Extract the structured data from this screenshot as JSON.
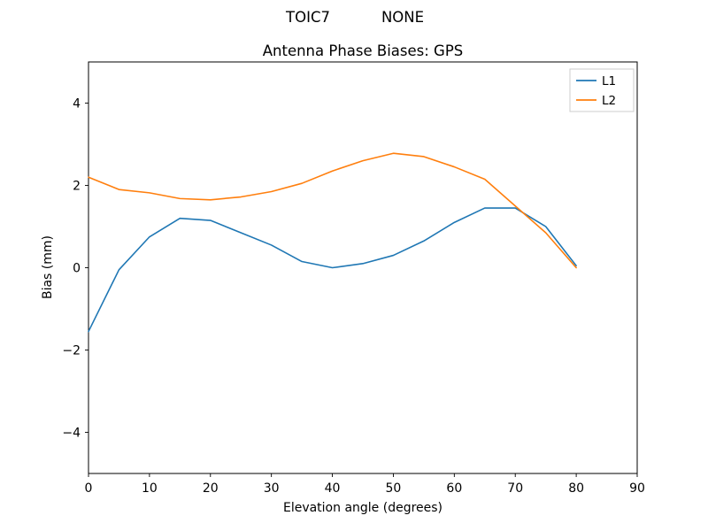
{
  "header": {
    "station": "TOIC7",
    "solution": "NONE"
  },
  "chart_data": {
    "type": "line",
    "title": "Antenna Phase Biases: GPS",
    "xlabel": "Elevation angle (degrees)",
    "ylabel": "Bias (mm)",
    "xlim": [
      0,
      90
    ],
    "ylim": [
      -5,
      5
    ],
    "xticks": [
      0,
      10,
      20,
      30,
      40,
      50,
      60,
      70,
      80,
      90
    ],
    "yticks": [
      -4,
      -2,
      0,
      2,
      4
    ],
    "grid": false,
    "legend": {
      "position": "upper right",
      "entries": [
        "L1",
        "L2"
      ]
    },
    "x": [
      0,
      5,
      10,
      15,
      20,
      25,
      30,
      35,
      40,
      45,
      50,
      55,
      60,
      65,
      70,
      75,
      80
    ],
    "series": [
      {
        "name": "L1",
        "color": "#1f77b4",
        "values": [
          -1.55,
          -0.05,
          0.75,
          1.2,
          1.15,
          0.85,
          0.55,
          0.15,
          0.0,
          0.1,
          0.3,
          0.65,
          1.1,
          1.45,
          1.45,
          1.0,
          0.05
        ]
      },
      {
        "name": "L2",
        "color": "#ff7f0e",
        "values": [
          2.2,
          1.9,
          1.82,
          1.68,
          1.65,
          1.72,
          1.85,
          2.05,
          2.35,
          2.6,
          2.78,
          2.7,
          2.45,
          2.15,
          1.5,
          0.85,
          0.0
        ]
      }
    ]
  }
}
